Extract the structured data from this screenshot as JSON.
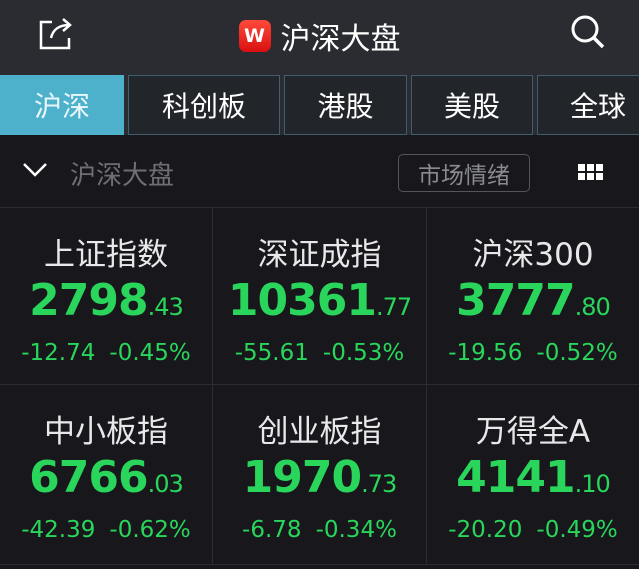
{
  "header": {
    "title": "沪深大盘",
    "logo_letter": "W"
  },
  "tabs": [
    {
      "label": "沪深",
      "active": true
    },
    {
      "label": "科创板"
    },
    {
      "label": "港股"
    },
    {
      "label": "美股"
    },
    {
      "label": "全球"
    }
  ],
  "section": {
    "title": "沪深大盘",
    "mood_button": "市场情绪"
  },
  "colors": {
    "down": "#29d65b",
    "accent": "#4eb1cc"
  },
  "indices": [
    {
      "name": "上证指数",
      "int": "2798",
      "dec": ".43",
      "change": "-12.74",
      "pct": "-0.45%"
    },
    {
      "name": "深证成指",
      "int": "10361",
      "dec": ".77",
      "change": "-55.61",
      "pct": "-0.53%"
    },
    {
      "name": "沪深300",
      "int": "3777",
      "dec": ".80",
      "change": "-19.56",
      "pct": "-0.52%"
    },
    {
      "name": "中小板指",
      "int": "6766",
      "dec": ".03",
      "change": "-42.39",
      "pct": "-0.62%"
    },
    {
      "name": "创业板指",
      "int": "1970",
      "dec": ".73",
      "change": "-6.78",
      "pct": "-0.34%"
    },
    {
      "name": "万得全A",
      "int": "4141",
      "dec": ".10",
      "change": "-20.20",
      "pct": "-0.49%"
    }
  ]
}
